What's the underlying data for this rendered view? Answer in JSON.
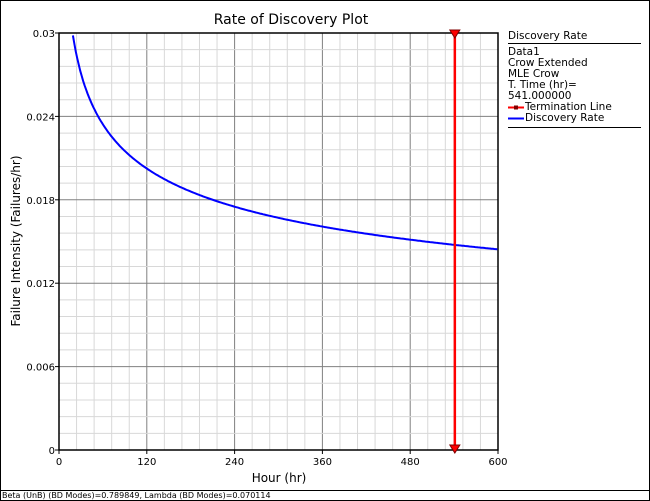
{
  "chart_data": {
    "type": "line",
    "title": "Rate of Discovery Plot",
    "xlabel": "Hour (hr)",
    "ylabel": "Failure Intensity (Failures/hr)",
    "xlim": [
      0,
      600
    ],
    "ylim": [
      0,
      0.03
    ],
    "xticks": [
      "0",
      "120",
      "240",
      "360",
      "480",
      "600"
    ],
    "yticks": [
      "0",
      "0.006",
      "0.012",
      "0.018",
      "0.024",
      "0.03"
    ],
    "grid": true,
    "minor_divisions": 5,
    "series": [
      {
        "name": "Discovery Rate",
        "color": "#0000ff",
        "model": "lambda*beta*t^(beta-1)",
        "beta": 0.789849,
        "lambda": 0.070114,
        "points": [
          [
            20,
            0.0296
          ],
          [
            60,
            0.0236
          ],
          [
            120,
            0.0203
          ],
          [
            240,
            0.0175
          ],
          [
            360,
            0.016
          ],
          [
            480,
            0.0151
          ],
          [
            541,
            0.0147
          ],
          [
            600,
            0.0144
          ]
        ]
      },
      {
        "name": "Termination Line",
        "color": "#ff0000",
        "x": 541
      }
    ],
    "legend": {
      "placement": "right",
      "title": "Discovery Rate",
      "lines": [
        "Data1",
        "Crow Extended",
        "MLE Crow",
        "T. Time (hr)= 541.000000"
      ],
      "entries": [
        "Termination Line",
        "Discovery Rate"
      ]
    }
  },
  "status_text": "Beta (UnB) (BD Modes)=0.789849, Lambda (BD Modes)=0.070114"
}
